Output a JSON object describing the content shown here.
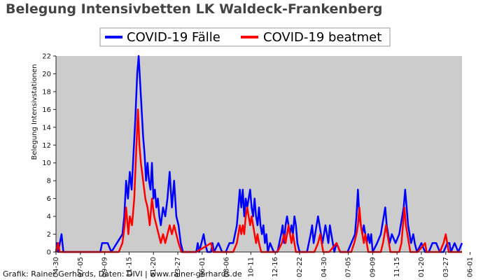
{
  "colors": {
    "plot_bg": "#cccccc",
    "series_cases": "#0000ff",
    "series_ventilated": "#ff0000",
    "title": "#444444"
  },
  "chart_data": {
    "type": "line",
    "title": "Belegung Intensivbetten LK Waldeck-Frankenberg",
    "ylabel": "Belegung Intensivstationen",
    "xlabel": "",
    "ylim": [
      0,
      22
    ],
    "yticks": [
      0,
      2,
      4,
      6,
      8,
      10,
      12,
      14,
      16,
      18,
      20,
      22
    ],
    "grid": false,
    "legend_placement": "top-center",
    "x_index_range": [
      0,
      1100
    ],
    "xticks": [
      {
        "i": 0,
        "label": "04-30"
      },
      {
        "i": 66,
        "label": "07-05"
      },
      {
        "i": 132,
        "label": "09-09"
      },
      {
        "i": 198,
        "label": "11-15"
      },
      {
        "i": 264,
        "label": "01-20"
      },
      {
        "i": 330,
        "label": "03-27"
      },
      {
        "i": 396,
        "label": "06-01"
      },
      {
        "i": 462,
        "label": "08-06"
      },
      {
        "i": 528,
        "label": "10-11"
      },
      {
        "i": 594,
        "label": "12-16"
      },
      {
        "i": 660,
        "label": "02-22"
      },
      {
        "i": 726,
        "label": "04-30"
      },
      {
        "i": 792,
        "label": "07-05"
      },
      {
        "i": 858,
        "label": "09-09"
      },
      {
        "i": 924,
        "label": "11-15"
      },
      {
        "i": 990,
        "label": "01-20"
      },
      {
        "i": 1056,
        "label": "03-27"
      },
      {
        "i": 1122,
        "label": "06-01"
      }
    ],
    "series": [
      {
        "name": "COVID-19 Fälle",
        "points": [
          [
            0,
            0
          ],
          [
            3,
            1
          ],
          [
            6,
            0
          ],
          [
            15,
            2
          ],
          [
            20,
            0
          ],
          [
            30,
            0
          ],
          [
            60,
            0
          ],
          [
            120,
            0
          ],
          [
            125,
            1
          ],
          [
            140,
            1
          ],
          [
            150,
            0
          ],
          [
            180,
            2
          ],
          [
            185,
            4
          ],
          [
            190,
            8
          ],
          [
            195,
            6
          ],
          [
            200,
            9
          ],
          [
            205,
            7
          ],
          [
            210,
            11
          ],
          [
            215,
            15
          ],
          [
            220,
            20
          ],
          [
            224,
            22
          ],
          [
            228,
            19
          ],
          [
            232,
            16
          ],
          [
            236,
            13
          ],
          [
            240,
            11
          ],
          [
            244,
            8
          ],
          [
            248,
            10
          ],
          [
            252,
            8
          ],
          [
            256,
            7
          ],
          [
            260,
            10
          ],
          [
            264,
            6
          ],
          [
            268,
            7
          ],
          [
            272,
            5
          ],
          [
            276,
            6
          ],
          [
            280,
            4
          ],
          [
            284,
            3
          ],
          [
            290,
            5
          ],
          [
            296,
            4
          ],
          [
            302,
            6
          ],
          [
            308,
            9
          ],
          [
            314,
            5
          ],
          [
            320,
            8
          ],
          [
            326,
            4
          ],
          [
            332,
            3
          ],
          [
            338,
            1
          ],
          [
            344,
            0
          ],
          [
            380,
            0
          ],
          [
            384,
            1
          ],
          [
            388,
            0
          ],
          [
            400,
            2
          ],
          [
            404,
            1
          ],
          [
            410,
            0
          ],
          [
            420,
            0
          ],
          [
            424,
            1
          ],
          [
            428,
            0
          ],
          [
            440,
            1
          ],
          [
            450,
            0
          ],
          [
            460,
            0
          ],
          [
            470,
            1
          ],
          [
            480,
            1
          ],
          [
            490,
            3
          ],
          [
            494,
            5
          ],
          [
            498,
            7
          ],
          [
            502,
            5
          ],
          [
            506,
            7
          ],
          [
            510,
            4
          ],
          [
            514,
            6
          ],
          [
            518,
            5
          ],
          [
            522,
            6
          ],
          [
            526,
            7
          ],
          [
            530,
            5
          ],
          [
            534,
            4
          ],
          [
            538,
            6
          ],
          [
            542,
            4
          ],
          [
            546,
            3
          ],
          [
            550,
            5
          ],
          [
            554,
            3
          ],
          [
            558,
            2
          ],
          [
            562,
            3
          ],
          [
            566,
            1
          ],
          [
            570,
            2
          ],
          [
            574,
            0
          ],
          [
            580,
            1
          ],
          [
            590,
            0
          ],
          [
            600,
            0
          ],
          [
            610,
            2
          ],
          [
            614,
            3
          ],
          [
            618,
            1
          ],
          [
            622,
            3
          ],
          [
            626,
            4
          ],
          [
            630,
            3
          ],
          [
            634,
            2
          ],
          [
            638,
            3
          ],
          [
            642,
            2
          ],
          [
            646,
            4
          ],
          [
            650,
            3
          ],
          [
            654,
            1
          ],
          [
            660,
            0
          ],
          [
            680,
            0
          ],
          [
            690,
            2
          ],
          [
            694,
            3
          ],
          [
            698,
            1
          ],
          [
            702,
            2
          ],
          [
            706,
            3
          ],
          [
            710,
            4
          ],
          [
            714,
            3
          ],
          [
            718,
            2
          ],
          [
            722,
            1
          ],
          [
            726,
            2
          ],
          [
            730,
            3
          ],
          [
            734,
            2
          ],
          [
            738,
            1
          ],
          [
            742,
            3
          ],
          [
            746,
            2
          ],
          [
            750,
            1
          ],
          [
            754,
            0
          ],
          [
            760,
            1
          ],
          [
            770,
            0
          ],
          [
            790,
            0
          ],
          [
            800,
            1
          ],
          [
            810,
            2
          ],
          [
            814,
            4
          ],
          [
            818,
            7
          ],
          [
            822,
            4
          ],
          [
            826,
            3
          ],
          [
            830,
            2
          ],
          [
            834,
            3
          ],
          [
            838,
            2
          ],
          [
            842,
            1
          ],
          [
            846,
            2
          ],
          [
            850,
            1
          ],
          [
            854,
            2
          ],
          [
            858,
            0
          ],
          [
            870,
            1
          ],
          [
            880,
            2
          ],
          [
            884,
            3
          ],
          [
            888,
            4
          ],
          [
            892,
            5
          ],
          [
            896,
            3
          ],
          [
            900,
            2
          ],
          [
            904,
            1
          ],
          [
            910,
            2
          ],
          [
            920,
            1
          ],
          [
            930,
            2
          ],
          [
            934,
            3
          ],
          [
            938,
            4
          ],
          [
            942,
            5
          ],
          [
            946,
            7
          ],
          [
            950,
            5
          ],
          [
            954,
            3
          ],
          [
            958,
            2
          ],
          [
            962,
            1
          ],
          [
            968,
            2
          ],
          [
            972,
            1
          ],
          [
            978,
            0
          ],
          [
            990,
            1
          ],
          [
            1000,
            0
          ],
          [
            1010,
            0
          ],
          [
            1020,
            1
          ],
          [
            1030,
            1
          ],
          [
            1040,
            0
          ],
          [
            1050,
            0
          ],
          [
            1060,
            1
          ],
          [
            1066,
            1
          ],
          [
            1070,
            0
          ],
          [
            1080,
            1
          ],
          [
            1090,
            0
          ],
          [
            1100,
            1
          ]
        ]
      },
      {
        "name": "COVID-19 beatmet",
        "points": [
          [
            0,
            0
          ],
          [
            6,
            1
          ],
          [
            10,
            0
          ],
          [
            20,
            0
          ],
          [
            120,
            0
          ],
          [
            170,
            0
          ],
          [
            180,
            1
          ],
          [
            186,
            3
          ],
          [
            190,
            5
          ],
          [
            196,
            2
          ],
          [
            200,
            4
          ],
          [
            206,
            3
          ],
          [
            212,
            6
          ],
          [
            218,
            12
          ],
          [
            222,
            16
          ],
          [
            226,
            12
          ],
          [
            230,
            10
          ],
          [
            236,
            8
          ],
          [
            242,
            6
          ],
          [
            248,
            5
          ],
          [
            254,
            3
          ],
          [
            260,
            6
          ],
          [
            266,
            4
          ],
          [
            272,
            3
          ],
          [
            278,
            2
          ],
          [
            284,
            1
          ],
          [
            290,
            2
          ],
          [
            296,
            1
          ],
          [
            302,
            2
          ],
          [
            308,
            3
          ],
          [
            314,
            2
          ],
          [
            320,
            3
          ],
          [
            326,
            2
          ],
          [
            332,
            1
          ],
          [
            340,
            0
          ],
          [
            380,
            0
          ],
          [
            420,
            1
          ],
          [
            426,
            0
          ],
          [
            480,
            0
          ],
          [
            490,
            1
          ],
          [
            494,
            2
          ],
          [
            498,
            3
          ],
          [
            502,
            2
          ],
          [
            506,
            3
          ],
          [
            510,
            2
          ],
          [
            514,
            4
          ],
          [
            518,
            5
          ],
          [
            522,
            4
          ],
          [
            526,
            3
          ],
          [
            530,
            4
          ],
          [
            534,
            3
          ],
          [
            538,
            2
          ],
          [
            542,
            1
          ],
          [
            546,
            2
          ],
          [
            550,
            1
          ],
          [
            556,
            0
          ],
          [
            600,
            0
          ],
          [
            612,
            1
          ],
          [
            618,
            2
          ],
          [
            622,
            1
          ],
          [
            626,
            2
          ],
          [
            630,
            3
          ],
          [
            634,
            2
          ],
          [
            638,
            1
          ],
          [
            642,
            2
          ],
          [
            646,
            1
          ],
          [
            650,
            0
          ],
          [
            700,
            0
          ],
          [
            710,
            1
          ],
          [
            716,
            2
          ],
          [
            720,
            1
          ],
          [
            724,
            0
          ],
          [
            740,
            0
          ],
          [
            760,
            1
          ],
          [
            770,
            0
          ],
          [
            800,
            0
          ],
          [
            808,
            1
          ],
          [
            814,
            2
          ],
          [
            818,
            3
          ],
          [
            822,
            5
          ],
          [
            826,
            3
          ],
          [
            830,
            2
          ],
          [
            834,
            1
          ],
          [
            838,
            2
          ],
          [
            842,
            1
          ],
          [
            846,
            0
          ],
          [
            880,
            0
          ],
          [
            886,
            1
          ],
          [
            890,
            2
          ],
          [
            894,
            3
          ],
          [
            898,
            2
          ],
          [
            902,
            1
          ],
          [
            906,
            0
          ],
          [
            930,
            0
          ],
          [
            936,
            1
          ],
          [
            940,
            3
          ],
          [
            944,
            5
          ],
          [
            948,
            3
          ],
          [
            952,
            2
          ],
          [
            956,
            1
          ],
          [
            960,
            0
          ],
          [
            980,
            0
          ],
          [
            1000,
            1
          ],
          [
            1004,
            0
          ],
          [
            1040,
            0
          ],
          [
            1050,
            1
          ],
          [
            1056,
            2
          ],
          [
            1060,
            1
          ],
          [
            1064,
            0
          ],
          [
            1100,
            0
          ]
        ]
      }
    ]
  },
  "legend": {
    "items": [
      "COVID-19 Fälle",
      "COVID-19 beatmet"
    ]
  },
  "footer": {
    "credit": "Grafik: Rainer Gerhards, Daten: DIVI | www.rainer-gerhards.de"
  }
}
